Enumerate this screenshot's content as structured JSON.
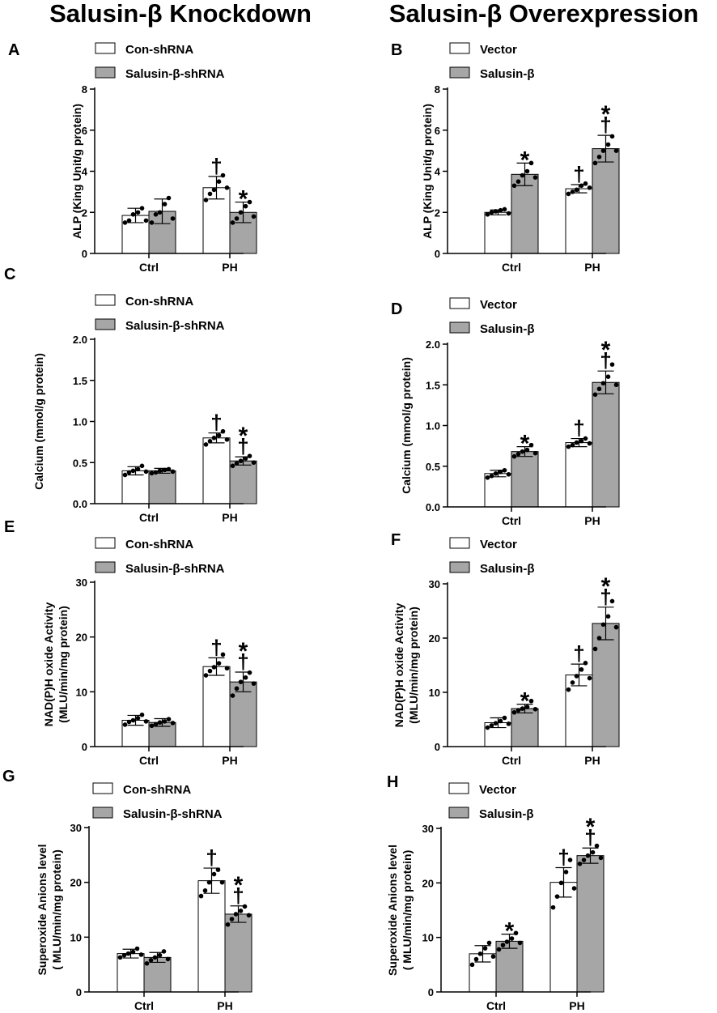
{
  "headings": {
    "left": "Salusin-β Knockdown",
    "right": "Salusin-β Overexpression"
  },
  "colors": {
    "control_bar": "#ffffff",
    "treatment_bar": "#a6a6a6",
    "axis": "#000000",
    "point": "#000000"
  },
  "chart_data": [
    {
      "panel": "A",
      "type": "bar",
      "title": "",
      "xlabel": "",
      "ylabel": [
        "ALP (King Unit/g protein)"
      ],
      "ylim": [
        0,
        8
      ],
      "yticks": [
        "0",
        "2",
        "4",
        "6",
        "8"
      ],
      "categories": [
        "Ctrl",
        "PH"
      ],
      "legend": [
        "Con-shRNA",
        "Salusin-β-shRNA"
      ],
      "series": [
        {
          "name": "Con-shRNA",
          "values": [
            1.85,
            3.2
          ],
          "errors": [
            0.35,
            0.55
          ],
          "points": [
            [
              1.5,
              1.6,
              1.9,
              2.0,
              2.2,
              1.6
            ],
            [
              2.6,
              2.9,
              3.1,
              3.5,
              3.8,
              3.2
            ]
          ],
          "marks": [
            "",
            "†"
          ]
        },
        {
          "name": "Salusin-β-shRNA",
          "values": [
            2.05,
            2.0
          ],
          "errors": [
            0.6,
            0.5
          ],
          "points": [
            [
              1.5,
              1.9,
              2.0,
              2.4,
              2.7,
              1.7
            ],
            [
              1.5,
              1.7,
              2.0,
              2.3,
              2.5,
              1.8
            ]
          ],
          "marks": [
            "",
            "*"
          ]
        }
      ]
    },
    {
      "panel": "B",
      "type": "bar",
      "title": "",
      "xlabel": "",
      "ylabel": [
        "ALP (King Unit/g protein)"
      ],
      "ylim": [
        0,
        8
      ],
      "yticks": [
        "0",
        "2",
        "4",
        "6",
        "8"
      ],
      "categories": [
        "Ctrl",
        "PH"
      ],
      "legend": [
        "Vector",
        "Salusin-β"
      ],
      "series": [
        {
          "name": "Vector",
          "values": [
            2.0,
            3.15
          ],
          "errors": [
            0.12,
            0.2
          ],
          "points": [
            [
              1.9,
              2.0,
              2.05,
              2.1,
              2.15,
              1.95
            ],
            [
              2.9,
              3.0,
              3.1,
              3.3,
              3.4,
              3.2
            ]
          ],
          "marks": [
            "",
            "†"
          ]
        },
        {
          "name": "Salusin-β",
          "values": [
            3.85,
            5.1
          ],
          "errors": [
            0.55,
            0.65
          ],
          "points": [
            [
              3.3,
              3.5,
              3.8,
              4.0,
              4.4,
              3.7
            ],
            [
              4.4,
              4.7,
              5.0,
              5.3,
              5.7,
              5.0
            ]
          ],
          "marks": [
            "*",
            "*†"
          ]
        }
      ]
    },
    {
      "panel": "C",
      "type": "bar",
      "title": "",
      "xlabel": "",
      "ylabel": [
        "Calcium (mmol/g protein)"
      ],
      "ylim": [
        0,
        2
      ],
      "yticks": [
        "0.0",
        "0.5",
        "1.0",
        "1.5",
        "2.0"
      ],
      "categories": [
        "Ctrl",
        "PH"
      ],
      "legend": [
        "Con-shRNA",
        "Salusin-β-shRNA"
      ],
      "series": [
        {
          "name": "Con-shRNA",
          "values": [
            0.4,
            0.8
          ],
          "errors": [
            0.05,
            0.06
          ],
          "points": [
            [
              0.35,
              0.38,
              0.4,
              0.42,
              0.46,
              0.39
            ],
            [
              0.72,
              0.76,
              0.8,
              0.83,
              0.88,
              0.78
            ]
          ],
          "marks": [
            "",
            "†"
          ]
        },
        {
          "name": "Salusin-β-shRNA",
          "values": [
            0.4,
            0.52
          ],
          "errors": [
            0.03,
            0.05
          ],
          "points": [
            [
              0.37,
              0.38,
              0.4,
              0.41,
              0.42,
              0.39
            ],
            [
              0.46,
              0.49,
              0.52,
              0.55,
              0.58,
              0.5
            ]
          ],
          "marks": [
            "",
            "*†"
          ]
        }
      ]
    },
    {
      "panel": "D",
      "type": "bar",
      "title": "",
      "xlabel": "",
      "ylabel": [
        "Calcium (mmol/g protein)"
      ],
      "ylim": [
        0,
        2
      ],
      "yticks": [
        "0.0",
        "0.5",
        "1.0",
        "1.5",
        "2.0"
      ],
      "categories": [
        "Ctrl",
        "PH"
      ],
      "legend": [
        "Vector",
        "Salusin-β"
      ],
      "series": [
        {
          "name": "Vector",
          "values": [
            0.41,
            0.79
          ],
          "errors": [
            0.04,
            0.05
          ],
          "points": [
            [
              0.36,
              0.38,
              0.41,
              0.43,
              0.45,
              0.4
            ],
            [
              0.74,
              0.76,
              0.79,
              0.81,
              0.84,
              0.78
            ]
          ],
          "marks": [
            "",
            "†"
          ]
        },
        {
          "name": "Salusin-β",
          "values": [
            0.68,
            1.53
          ],
          "errors": [
            0.06,
            0.14
          ],
          "points": [
            [
              0.62,
              0.65,
              0.68,
              0.7,
              0.76,
              0.66
            ],
            [
              1.38,
              1.45,
              1.52,
              1.6,
              1.75,
              1.5
            ]
          ],
          "marks": [
            "*",
            "*†"
          ]
        }
      ]
    },
    {
      "panel": "E",
      "type": "bar",
      "title": "",
      "xlabel": "",
      "ylabel": [
        "NAD(P)H oxide Activity",
        "(MLU/min/mg protein)"
      ],
      "ylim": [
        0,
        30
      ],
      "yticks": [
        "0",
        "10",
        "20",
        "30"
      ],
      "categories": [
        "Ctrl",
        "PH"
      ],
      "legend": [
        "Con-shRNA",
        "Salusin-β-shRNA"
      ],
      "series": [
        {
          "name": "Con-shRNA",
          "values": [
            4.8,
            14.6
          ],
          "errors": [
            0.9,
            1.6
          ],
          "points": [
            [
              4.0,
              4.5,
              4.8,
              5.2,
              5.8,
              4.6
            ],
            [
              13.0,
              13.8,
              14.5,
              15.2,
              16.8,
              14.3
            ]
          ],
          "marks": [
            "",
            "†"
          ]
        },
        {
          "name": "Salusin-β-shRNA",
          "values": [
            4.4,
            11.8
          ],
          "errors": [
            0.7,
            1.8
          ],
          "points": [
            [
              3.8,
              4.1,
              4.4,
              4.6,
              5.0,
              4.3
            ],
            [
              9.3,
              10.6,
              11.8,
              12.6,
              13.5,
              11.5
            ]
          ],
          "marks": [
            "",
            "*†"
          ]
        }
      ]
    },
    {
      "panel": "F",
      "type": "bar",
      "title": "",
      "xlabel": "",
      "ylabel": [
        "NAD(P)H oxide Activity",
        "(MLU/min/mg protein)"
      ],
      "ylim": [
        0,
        30
      ],
      "yticks": [
        "0",
        "10",
        "20",
        "30"
      ],
      "categories": [
        "Ctrl",
        "PH"
      ],
      "legend": [
        "Vector",
        "Salusin-β"
      ],
      "series": [
        {
          "name": "Vector",
          "values": [
            4.4,
            13.2
          ],
          "errors": [
            0.9,
            2.0
          ],
          "points": [
            [
              3.5,
              3.9,
              4.3,
              4.7,
              5.3,
              4.2
            ],
            [
              10.5,
              11.8,
              13.0,
              14.2,
              15.4,
              12.6
            ]
          ],
          "marks": [
            "",
            "†"
          ]
        },
        {
          "name": "Salusin-β",
          "values": [
            7.0,
            22.7
          ],
          "errors": [
            0.8,
            3.0
          ],
          "points": [
            [
              6.3,
              6.7,
              7.0,
              7.3,
              8.4,
              6.9
            ],
            [
              18.0,
              20.0,
              22.5,
              24.0,
              26.8,
              22.0
            ]
          ],
          "marks": [
            "*",
            "*†"
          ]
        }
      ]
    },
    {
      "panel": "G",
      "type": "bar",
      "title": "",
      "xlabel": "",
      "ylabel": [
        "Superoxide Anions level",
        "( MLU/min/mg protein)"
      ],
      "ylim": [
        0,
        30
      ],
      "yticks": [
        "0",
        "10",
        "20",
        "30"
      ],
      "categories": [
        "Ctrl",
        "PH"
      ],
      "legend": [
        "Con-shRNA",
        "Salusin-β-shRNA"
      ],
      "series": [
        {
          "name": "Con-shRNA",
          "values": [
            7.0,
            20.3
          ],
          "errors": [
            0.8,
            2.3
          ],
          "points": [
            [
              6.3,
              6.7,
              7.0,
              7.3,
              7.9,
              6.8
            ],
            [
              17.5,
              18.5,
              20.0,
              21.5,
              22.3,
              20.0
            ]
          ],
          "marks": [
            "",
            "†"
          ]
        },
        {
          "name": "Salusin-β-shRNA",
          "values": [
            6.3,
            14.2
          ],
          "errors": [
            0.9,
            1.5
          ],
          "points": [
            [
              5.2,
              5.8,
              6.3,
              6.7,
              7.4,
              6.0
            ],
            [
              12.3,
              13.3,
              14.2,
              14.8,
              15.6,
              14.0
            ]
          ],
          "marks": [
            "",
            "*†"
          ]
        }
      ]
    },
    {
      "panel": "H",
      "type": "bar",
      "title": "",
      "xlabel": "",
      "ylabel": [
        "Superoxide Anions level",
        "( MLU/min/mg protein)"
      ],
      "ylim": [
        0,
        30
      ],
      "yticks": [
        "0",
        "10",
        "20",
        "30"
      ],
      "categories": [
        "Ctrl",
        "PH"
      ],
      "legend": [
        "Vector",
        "Salusin-β"
      ],
      "series": [
        {
          "name": "Vector",
          "values": [
            7.0,
            20.1
          ],
          "errors": [
            1.5,
            2.7
          ],
          "points": [
            [
              5.0,
              6.0,
              7.0,
              8.0,
              9.0,
              6.5
            ],
            [
              15.5,
              17.5,
              20.0,
              22.0,
              24.2,
              19.0
            ]
          ],
          "marks": [
            "",
            "†"
          ]
        },
        {
          "name": "Salusin-β",
          "values": [
            9.3,
            25.0
          ],
          "errors": [
            1.3,
            1.4
          ],
          "points": [
            [
              7.8,
              8.6,
              9.2,
              9.8,
              10.8,
              9.0
            ],
            [
              23.5,
              24.2,
              25.0,
              25.6,
              26.8,
              24.6
            ]
          ],
          "marks": [
            "*",
            "*†"
          ]
        }
      ]
    }
  ]
}
